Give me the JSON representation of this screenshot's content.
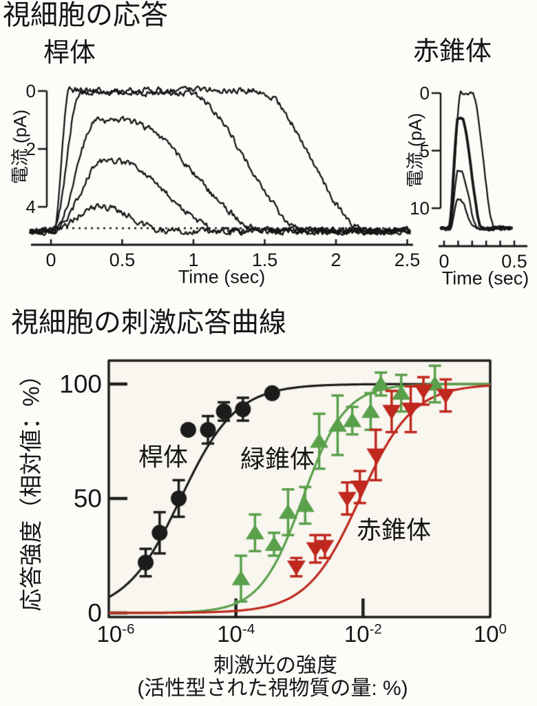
{
  "page": {
    "title": "視細胞の応答"
  },
  "chart_data": [
    {
      "id": "rod-photocurrent-traces",
      "type": "line",
      "title": "桿体",
      "ylabel": "電流 (pA)",
      "xlabel": "Time (sec)",
      "yticks_pA": [
        0,
        2,
        4
      ],
      "xticks_sec": [
        0,
        0.5,
        1,
        1.5,
        2,
        2.5
      ],
      "xlim_sec": [
        -0.15,
        2.53
      ],
      "baseline": {
        "style": "dotted",
        "pA": 4.8
      },
      "noise_pA": 0.15,
      "traces": [
        {
          "amp_pA": 0.82,
          "t_on": 0.02,
          "t_peak": 0.32,
          "t_decay_start": 0.38,
          "t_end": 0.8
        },
        {
          "amp_pA": 2.42,
          "t_on": 0.02,
          "t_peak": 0.37,
          "t_decay_start": 0.44,
          "t_end": 1.22
        },
        {
          "amp_pA": 3.8,
          "t_on": 0.02,
          "t_peak": 0.32,
          "t_decay_start": 0.52,
          "t_end": 1.52
        },
        {
          "amp_pA": 4.78,
          "t_on": 0.02,
          "t_peak": 0.2,
          "t_decay_start": 0.95,
          "t_end": 1.8
        },
        {
          "amp_pA": 4.86,
          "t_on": 0.02,
          "t_peak": 0.13,
          "t_decay_start": 1.45,
          "t_end": 2.22
        }
      ]
    },
    {
      "id": "red-cone-photocurrent-traces",
      "type": "line",
      "title": "赤錐体",
      "ylabel": "電流 (pA)",
      "xlabel": "Time (sec)",
      "yticks_pA": [
        0,
        5,
        10
      ],
      "xticks_sec": [
        0,
        0.5
      ],
      "xminor_sec": 0.1,
      "xlim_sec": [
        -0.025,
        0.49
      ],
      "noise_pA": 0.18,
      "traces": [
        {
          "amp_pA": 2.4,
          "t_on": 0.04,
          "t_peak": 0.1,
          "t_decay_start": 0.115,
          "t_end": 0.22,
          "bold": false
        },
        {
          "amp_pA": 5.1,
          "t_on": 0.04,
          "t_peak": 0.1,
          "t_decay_start": 0.115,
          "t_end": 0.24,
          "bold": false
        },
        {
          "amp_pA": 9.6,
          "t_on": 0.035,
          "t_peak": 0.1,
          "t_decay_start": 0.125,
          "t_end": 0.27,
          "bold": true
        },
        {
          "amp_pA": 11.75,
          "t_on": 0.035,
          "t_peak": 0.12,
          "t_decay_start": 0.2,
          "t_end": 0.36,
          "bold": false
        }
      ]
    },
    {
      "id": "stimulus-response-curves",
      "type": "scatter",
      "title": "視細胞の刺激応答曲線",
      "ylabel": "応答強度（相対値：%）",
      "xlabel_line1": "刺激光の強度",
      "xlabel_line2": "(活性型された視物質の量: %)",
      "x_scale": "log10",
      "xtick_exponents": [
        -6,
        -4,
        -2,
        0
      ],
      "yticks": [
        0,
        50,
        100
      ],
      "xlim_log10": [
        -6,
        0
      ],
      "ylim": [
        0,
        105
      ],
      "legend": "labels drawn inside plot",
      "series": [
        {
          "name": "桿体",
          "marker": "circle",
          "color": "#1c1c1c",
          "fit": {
            "type": "hill",
            "logK": -4.87,
            "n": 1.0
          },
          "points": [
            {
              "log_x": -5.42,
              "y": 22,
              "err": 6
            },
            {
              "log_x": -5.2,
              "y": 35,
              "err": 9
            },
            {
              "log_x": -4.9,
              "y": 50,
              "err": 8
            },
            {
              "log_x": -4.75,
              "y": 80,
              "err": 0
            },
            {
              "log_x": -4.44,
              "y": 80,
              "err": 6
            },
            {
              "log_x": -4.19,
              "y": 88,
              "err": 4
            },
            {
              "log_x": -3.89,
              "y": 89,
              "err": 5
            },
            {
              "log_x": -3.43,
              "y": 96,
              "err": 0
            }
          ]
        },
        {
          "name": "緑錐体",
          "marker": "triangle-up",
          "color": "#5aa04b",
          "fit": {
            "type": "hill",
            "logK": -2.95,
            "n": 1.3
          },
          "points": [
            {
              "log_x": -3.92,
              "y": 15,
              "err": 10
            },
            {
              "log_x": -3.7,
              "y": 35,
              "err": 8
            },
            {
              "log_x": -3.4,
              "y": 30,
              "err": 5
            },
            {
              "log_x": -3.18,
              "y": 44,
              "err": 10
            },
            {
              "log_x": -2.91,
              "y": 47,
              "err": 8
            },
            {
              "log_x": -2.69,
              "y": 75,
              "err": 12
            },
            {
              "log_x": -2.4,
              "y": 82,
              "err": 13
            },
            {
              "log_x": -2.17,
              "y": 84,
              "err": 6
            },
            {
              "log_x": -1.88,
              "y": 88,
              "err": 8
            },
            {
              "log_x": -1.72,
              "y": 100,
              "err": 5
            },
            {
              "log_x": -1.4,
              "y": 96,
              "err": 8
            },
            {
              "log_x": -0.87,
              "y": 100,
              "err": 8
            }
          ]
        },
        {
          "name": "赤錐体",
          "marker": "triangle-down",
          "color": "#c0281e",
          "fit": {
            "type": "hill",
            "logK": -2.05,
            "n": 1.05
          },
          "points": [
            {
              "log_x": -3.05,
              "y": 20,
              "err": 4
            },
            {
              "log_x": -2.75,
              "y": 28,
              "err": 6
            },
            {
              "log_x": -2.6,
              "y": 29,
              "err": 5
            },
            {
              "log_x": -2.25,
              "y": 50,
              "err": 7
            },
            {
              "log_x": -2.05,
              "y": 55,
              "err": 7
            },
            {
              "log_x": -1.8,
              "y": 69,
              "err": 11
            },
            {
              "log_x": -1.55,
              "y": 88,
              "err": 9
            },
            {
              "log_x": -1.25,
              "y": 89,
              "err": 10
            },
            {
              "log_x": -1.05,
              "y": 97,
              "err": 6
            },
            {
              "log_x": -0.7,
              "y": 95,
              "err": 7
            }
          ]
        }
      ]
    }
  ]
}
